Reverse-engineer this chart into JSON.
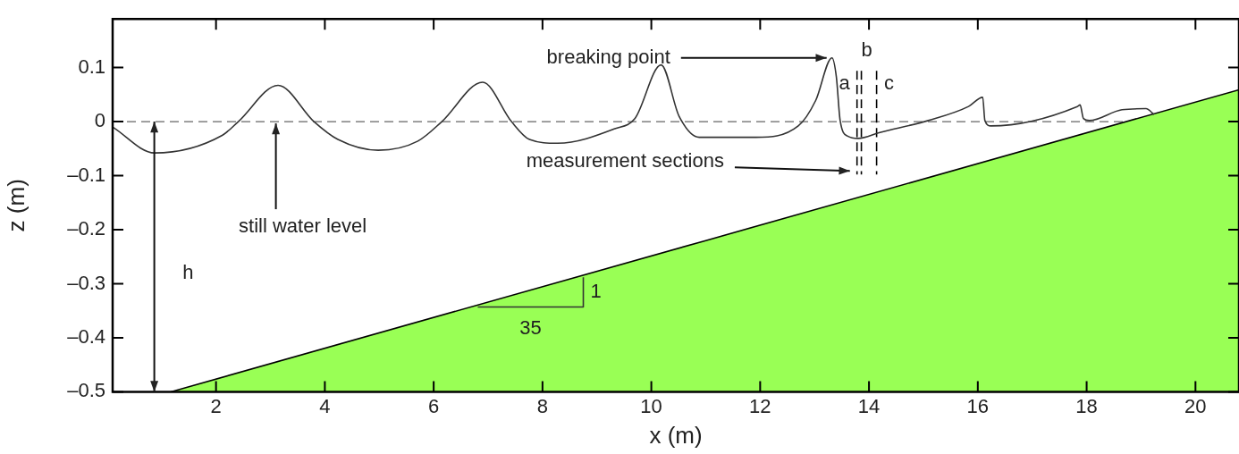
{
  "chart_data": {
    "type": "line",
    "xlabel": "x (m)",
    "ylabel": "z (m)",
    "xlim": [
      0.1,
      20.8
    ],
    "ylim": [
      -0.5,
      0.19
    ],
    "xticks": [
      2,
      4,
      6,
      8,
      10,
      12,
      14,
      16,
      18,
      20
    ],
    "yticks": [
      {
        "value": -0.5,
        "label": "–0.5"
      },
      {
        "value": -0.4,
        "label": "–0.4"
      },
      {
        "value": -0.3,
        "label": "–0.3"
      },
      {
        "value": -0.2,
        "label": "–0.2"
      },
      {
        "value": -0.1,
        "label": "–0.1"
      },
      0,
      0.1
    ],
    "grid": false,
    "legend": false,
    "marker": "none",
    "series": [
      {
        "type": "line",
        "color": "#333333",
        "line_style": "solid",
        "x": [
          0.1,
          0.87,
          2.12,
          2.41,
          3.14,
          3.8,
          4.24,
          4.98,
          5.71,
          6.15,
          6.9,
          7.43,
          7.76,
          8.28,
          9.33,
          9.7,
          10.18,
          10.51,
          10.88,
          11.92,
          12.7,
          13.02,
          13.32,
          13.4,
          13.47,
          13.61,
          13.8,
          14.2,
          15.09,
          15.83,
          16.09,
          16.13,
          16.24,
          17.83,
          17.88,
          17.94,
          18.05,
          18.65,
          19.09,
          19.24
        ],
        "values": [
          -0.01,
          -0.058,
          -0.025,
          0,
          0.067,
          0,
          -0.033,
          -0.053,
          -0.036,
          0,
          0.073,
          0,
          -0.033,
          -0.04,
          -0.013,
          0.006,
          0.105,
          0.01,
          -0.029,
          -0.029,
          -0.008,
          0.039,
          0.118,
          0.083,
          0.002,
          -0.027,
          -0.031,
          -0.02,
          0.002,
          0.028,
          0.045,
          0.002,
          -0.008,
          0.028,
          0.031,
          0.006,
          0.002,
          0.022,
          0.024,
          0.013
        ]
      },
      {
        "type": "area",
        "color": "#99ff55",
        "line_style": "solid",
        "x": [
          1.17,
          20.8
        ],
        "values": [
          -0.5,
          0.059
        ]
      },
      {
        "type": "line",
        "color": "#000000",
        "line_style": "dashed",
        "x": [
          13.78,
          13.78
        ],
        "values": [
          0.094,
          -0.098
        ]
      },
      {
        "type": "line",
        "color": "#000000",
        "line_style": "dashed",
        "x": [
          13.86,
          13.86
        ],
        "values": [
          0.094,
          -0.098
        ]
      },
      {
        "type": "line",
        "color": "#000000",
        "line_style": "dashed",
        "x": [
          14.14,
          14.14
        ],
        "values": [
          0.094,
          -0.098
        ]
      },
      {
        "type": "line",
        "color": "#333333",
        "line_style": "solid",
        "x": [
          6.81,
          8.75,
          8.75
        ],
        "values": [
          -0.343,
          -0.343,
          -0.288
        ]
      }
    ],
    "ref_lines": [
      {
        "axis": "y",
        "value": 0,
        "color": "#666666",
        "line_style": "dashed"
      }
    ],
    "annotations": [
      {
        "text": "breaking point",
        "x": 13.32,
        "y": 0.118
      },
      "measurement sections",
      {
        "text": "still water level",
        "x": 3.1,
        "y": 0
      },
      "h",
      {
        "text": "a",
        "x": 13.78,
        "y": 0.06
      },
      {
        "text": "b",
        "x": 13.86,
        "y": 0.094
      },
      {
        "text": "c",
        "x": 14.14,
        "y": 0.06
      },
      {
        "text": "1",
        "x": 8.75,
        "y": -0.316
      },
      {
        "text": "35",
        "x": 7.78,
        "y": -0.343
      }
    ]
  }
}
